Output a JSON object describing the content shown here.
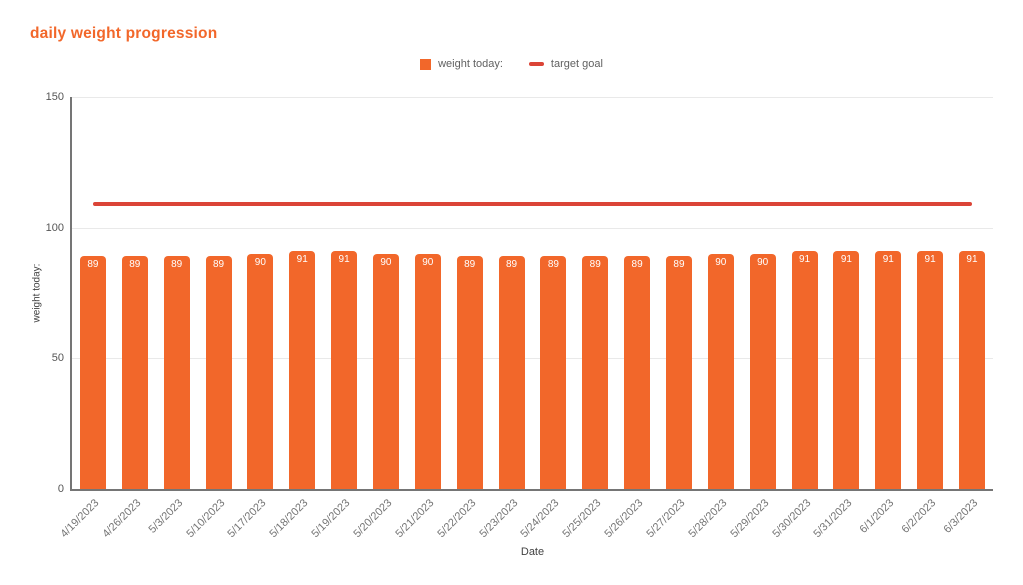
{
  "title": "daily weight progression",
  "legend": {
    "series_label": "weight today:",
    "target_label": "target goal"
  },
  "colors": {
    "title": "#f2672a",
    "bar": "#f2672a",
    "target_line": "#db4437",
    "axis_line": "#757575",
    "gridline": "#e9e9e9"
  },
  "axes": {
    "y_title": "weight today:",
    "x_title": "Date",
    "y_ticks": [
      150,
      100,
      50,
      0
    ],
    "y_max": 150
  },
  "chart_data": {
    "type": "bar",
    "title": "daily weight progression",
    "xlabel": "Date",
    "ylabel": "weight today:",
    "ylim": [
      0,
      150
    ],
    "grid": true,
    "legend_position": "top-center",
    "categories": [
      "4/19/2023",
      "4/26/2023",
      "5/3/2023",
      "5/10/2023",
      "5/17/2023",
      "5/18/2023",
      "5/19/2023",
      "5/20/2023",
      "5/21/2023",
      "5/22/2023",
      "5/23/2023",
      "5/24/2023",
      "5/25/2023",
      "5/26/2023",
      "5/27/2023",
      "5/28/2023",
      "5/29/2023",
      "5/30/2023",
      "5/31/2023",
      "6/1/2023",
      "6/2/2023",
      "6/3/2023"
    ],
    "series": [
      {
        "name": "weight today:",
        "type": "bar",
        "color": "#f2672a",
        "values": [
          89,
          89,
          89,
          89,
          90,
          91,
          91,
          90,
          90,
          89,
          89,
          89,
          89,
          89,
          89,
          90,
          90,
          91,
          91,
          91,
          91,
          91
        ]
      },
      {
        "name": "target goal",
        "type": "line",
        "color": "#db4437",
        "value": 110
      }
    ]
  }
}
